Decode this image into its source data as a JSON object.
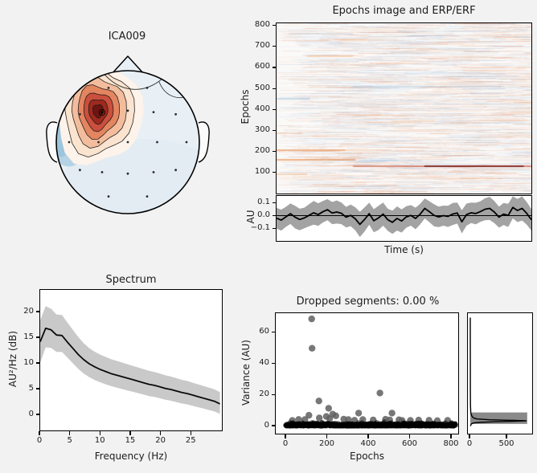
{
  "figure": {
    "bg": "#f2f2f2",
    "axes_bg": "#ffffff",
    "text_color": "#1c1c1c",
    "erp_band_color": "#a3a3a3",
    "spectrum_band_color": "#c9c9c9",
    "line_color": "#000000"
  },
  "chart_data": [
    {
      "id": "topomap",
      "type": "heatmap",
      "title": "ICA009",
      "description": "ICA component scalp topography; strong positive (red) focus over left frontal region near F3, weak negative (blue) patch at left temporal edge, rest of scalp near zero (pale blue). Head outline with nose and ears, 19 electrode dots.",
      "colormap": "RdBu_r",
      "bg_color": "#e8f0f6",
      "blue_patch_color": "#b3d1e4",
      "blue_deep_color": "#9cc4dc",
      "ring_colors": [
        "#fdf3ea",
        "#fae3cf",
        "#f3bd9d",
        "#e3855f",
        "#ca4f3c",
        "#9e291e",
        "#6e1411"
      ],
      "n_electrodes": 19
    },
    {
      "id": "epochs_image",
      "type": "heatmap",
      "title": "Epochs image and ERP/ERF",
      "ylabel": "Epochs",
      "yticks": [
        100,
        200,
        300,
        400,
        500,
        600,
        700,
        800
      ],
      "ylim": [
        0,
        810
      ],
      "appearance": "near-white field of faint horizontal red/blue noise streaks",
      "streaks": [
        {
          "e": 130,
          "x0": 0.3,
          "x1": 1.0,
          "c": "#c03a1e",
          "a": 0.75,
          "w": 1.4
        },
        {
          "e": 130,
          "x0": 0.58,
          "x1": 0.97,
          "c": "#6f0d08",
          "a": 0.95,
          "w": 1.6
        },
        {
          "e": 162,
          "x0": 0.0,
          "x1": 0.31,
          "c": "#e8823c",
          "a": 0.85,
          "w": 1.4
        },
        {
          "e": 205,
          "x0": 0.0,
          "x1": 0.27,
          "c": "#e8823c",
          "a": 0.8,
          "w": 1.4
        },
        {
          "e": 205,
          "x0": 0.27,
          "x1": 0.45,
          "c": "#eda061",
          "a": 0.4,
          "w": 1.2
        },
        {
          "e": 92,
          "x0": 0.0,
          "x1": 0.12,
          "c": "#e8903c",
          "a": 0.55,
          "w": 1.2
        },
        {
          "e": 285,
          "x0": 0.0,
          "x1": 0.1,
          "c": "#eda061",
          "a": 0.5,
          "w": 1.2
        },
        {
          "e": 345,
          "x0": 0.45,
          "x1": 0.62,
          "c": "#f0b27a",
          "a": 0.45,
          "w": 1.2
        },
        {
          "e": 450,
          "x0": 0.0,
          "x1": 0.13,
          "c": "#7fa8cc",
          "a": 0.6,
          "w": 1.2
        },
        {
          "e": 510,
          "x0": 0.3,
          "x1": 0.88,
          "c": "#9dbdd8",
          "a": 0.65,
          "w": 1.2
        },
        {
          "e": 570,
          "x0": 0.5,
          "x1": 0.9,
          "c": "#aac6de",
          "a": 0.45,
          "w": 1.1
        },
        {
          "e": 652,
          "x0": 0.12,
          "x1": 0.3,
          "c": "#f0a05a",
          "a": 0.55,
          "w": 1.2
        },
        {
          "e": 685,
          "x0": 0.55,
          "x1": 0.78,
          "c": "#f0b27a",
          "a": 0.4,
          "w": 1.1
        },
        {
          "e": 760,
          "x0": 0.05,
          "x1": 0.3,
          "c": "#aac6de",
          "a": 0.55,
          "w": 1.2
        }
      ]
    },
    {
      "id": "erp",
      "type": "line",
      "xlabel": "Time (s)",
      "ylabel": "AU",
      "yticks": [
        "0.1",
        "0.0",
        "−0.1"
      ],
      "ytick_values": [
        0.1,
        0.0,
        -0.1
      ],
      "ylim": [
        -0.2,
        0.145
      ],
      "x_range_norm": [
        0,
        1
      ],
      "mean": [
        -0.02,
        -0.035,
        -0.01,
        0.015,
        -0.012,
        -0.03,
        -0.018,
        0.002,
        0.022,
        0.008,
        0.03,
        0.046,
        0.02,
        0.028,
        0.018,
        -0.012,
        0.002,
        -0.025,
        -0.068,
        -0.03,
        0.015,
        -0.04,
        -0.018,
        0.012,
        -0.032,
        -0.052,
        -0.022,
        -0.042,
        -0.01,
        0.002,
        -0.022,
        0.012,
        0.056,
        0.03,
        0.002,
        -0.01,
        0.0,
        -0.006,
        0.012,
        0.02,
        -0.048,
        0.008,
        0.022,
        0.016,
        0.032,
        0.05,
        0.056,
        0.028,
        -0.012,
        0.012,
        0.002,
        0.064,
        0.04,
        0.056,
        0.018,
        -0.032
      ],
      "halfwidth": [
        0.08,
        0.082,
        0.078,
        0.08,
        0.088,
        0.084,
        0.08,
        0.086,
        0.092,
        0.088,
        0.084,
        0.082,
        0.086,
        0.09,
        0.084,
        0.08,
        0.084,
        0.09,
        0.098,
        0.094,
        0.086,
        0.09,
        0.094,
        0.09,
        0.086,
        0.09,
        0.094,
        0.09,
        0.084,
        0.08,
        0.084,
        0.08,
        0.078,
        0.082,
        0.086,
        0.08,
        0.078,
        0.082,
        0.086,
        0.082,
        0.09,
        0.086,
        0.08,
        0.084,
        0.08,
        0.086,
        0.09,
        0.086,
        0.082,
        0.086,
        0.09,
        0.086,
        0.09,
        0.094,
        0.088,
        0.084
      ]
    },
    {
      "id": "spectrum",
      "type": "line",
      "title": "Spectrum",
      "xlabel": "Frequency (Hz)",
      "ylabel": "AU²/Hz (dB)",
      "xticks": [
        0,
        5,
        10,
        15,
        20,
        25
      ],
      "yticks": [
        0,
        5,
        10,
        15,
        20
      ],
      "xlim": [
        0,
        30
      ],
      "ylim": [
        -3.1,
        24.2
      ],
      "freq": [
        0,
        0.9,
        1.8,
        2.7,
        3.6,
        4.5,
        5.4,
        6.3,
        7.2,
        8.1,
        9,
        9.9,
        10.8,
        11.7,
        12.6,
        13.5,
        14.4,
        15.3,
        16.2,
        17.1,
        18,
        18.9,
        19.8,
        20.7,
        21.6,
        22.5,
        23.4,
        24.3,
        25.2,
        26.1,
        27,
        27.9,
        28.8,
        29.7
      ],
      "mean": [
        14.3,
        16.9,
        16.6,
        15.6,
        15.5,
        14.2,
        13.0,
        11.8,
        10.8,
        10.0,
        9.4,
        8.9,
        8.5,
        8.1,
        7.8,
        7.5,
        7.2,
        6.9,
        6.6,
        6.3,
        6.0,
        5.8,
        5.5,
        5.2,
        5.0,
        4.7,
        4.4,
        4.2,
        3.9,
        3.6,
        3.3,
        3.0,
        2.7,
        2.2
      ],
      "upper": [
        18.5,
        21.2,
        20.7,
        19.6,
        19.5,
        18.0,
        16.6,
        15.2,
        14.0,
        13.05,
        12.35,
        11.8,
        11.35,
        10.9,
        10.58,
        10.25,
        9.92,
        9.6,
        9.28,
        8.95,
        8.62,
        8.4,
        8.08,
        7.75,
        7.52,
        7.2,
        6.88,
        6.65,
        6.32,
        6.0,
        5.68,
        5.35,
        5.02,
        4.5
      ],
      "lower": [
        10.2,
        13.2,
        13.1,
        12.3,
        12.3,
        11.2,
        10.1,
        9.0,
        8.1,
        7.4,
        6.85,
        6.4,
        6.02,
        5.65,
        5.38,
        5.1,
        4.82,
        4.55,
        4.28,
        4.0,
        3.72,
        3.55,
        3.28,
        3.0,
        2.82,
        2.55,
        2.28,
        2.1,
        1.82,
        1.55,
        1.28,
        1.0,
        0.72,
        0.25
      ]
    },
    {
      "id": "variance_scatter",
      "type": "scatter",
      "title": "Dropped segments: 0.00 %",
      "xlabel": "Epochs",
      "ylabel": "Variance (AU)",
      "xticks": [
        0,
        200,
        400,
        600,
        800
      ],
      "yticks": [
        0,
        20,
        40,
        60
      ],
      "xlim": [
        -46,
        835
      ],
      "ylim": [
        -5.2,
        72.4
      ],
      "outliers": [
        [
          123,
          69.2
        ],
        [
          125,
          50.3
        ],
        [
          158,
          16.4
        ],
        [
          205,
          11.7
        ],
        [
          110,
          7.2
        ],
        [
          194,
          6.4
        ],
        [
          225,
          7.9
        ],
        [
          278,
          4.7
        ],
        [
          350,
          8.6
        ],
        [
          453,
          21.5
        ],
        [
          511,
          8.6
        ],
        [
          240,
          6.8
        ],
        [
          60,
          4.5
        ],
        [
          300,
          4.4
        ],
        [
          420,
          4.2
        ],
        [
          480,
          4.6
        ],
        [
          545,
          4.3
        ],
        [
          600,
          3.9
        ],
        [
          640,
          4.1
        ],
        [
          690,
          4.0
        ],
        [
          730,
          3.7
        ],
        [
          780,
          3.9
        ],
        [
          30,
          3.8
        ],
        [
          90,
          4.4
        ],
        [
          160,
          5.5
        ],
        [
          210,
          5.0
        ],
        [
          330,
          4.0
        ],
        [
          370,
          4.4
        ],
        [
          500,
          4.2
        ],
        [
          560,
          3.8
        ]
      ],
      "dense_band": {
        "n": 820,
        "x_range": [
          0,
          820
        ],
        "v_base": 0.2,
        "v_spread": 0.95,
        "v_max": 3.4
      }
    },
    {
      "id": "variance_hist",
      "type": "bar",
      "orientation": "horizontal",
      "xticks": [
        0,
        500
      ],
      "xlim": [
        0,
        860
      ],
      "shares_ylim_with": "variance_scatter",
      "bar": {
        "v0": 1.6,
        "v1": 9.0,
        "count": 770
      },
      "density_curve": [
        [
          0.2,
          3
        ],
        [
          1,
          8
        ],
        [
          1.6,
          15
        ],
        [
          2.2,
          40
        ],
        [
          2.6,
          120
        ],
        [
          3,
          330
        ],
        [
          3.3,
          600
        ],
        [
          3.6,
          755
        ],
        [
          3.9,
          600
        ],
        [
          4.3,
          260
        ],
        [
          4.8,
          90
        ],
        [
          5.5,
          45
        ],
        [
          6.2,
          28
        ],
        [
          7,
          18
        ],
        [
          8,
          11
        ],
        [
          9,
          7
        ],
        [
          10.5,
          5
        ],
        [
          13,
          3
        ],
        [
          17,
          2
        ],
        [
          25,
          1
        ],
        [
          40,
          0.6
        ],
        [
          60,
          0.4
        ],
        [
          70,
          0.3
        ]
      ]
    }
  ]
}
